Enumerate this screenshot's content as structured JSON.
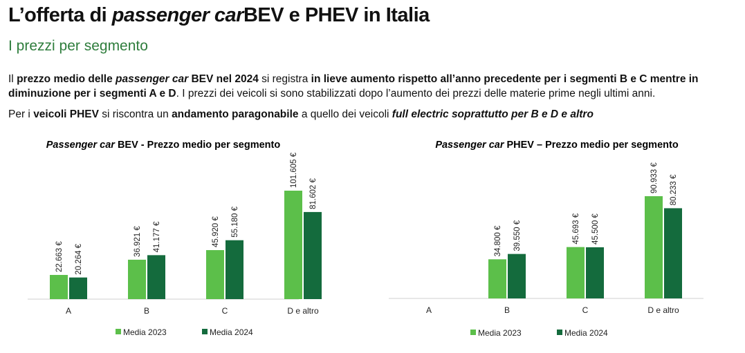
{
  "header": {
    "title_pre": "L’offerta di ",
    "title_italic": "passenger car",
    "title_post": "BEV e PHEV in Italia",
    "subtitle": "I prezzi per segmento"
  },
  "paragraph1": {
    "s1": "Il ",
    "s2": "prezzo medio delle ",
    "s3": "passenger car",
    "s4": " BEV nel 2024",
    "s5": " si registra ",
    "s6": "in lieve aumento rispetto all’anno precedente per i segmenti B e C mentre in diminuzione per i segmenti A e D",
    "s7": ". I prezzi dei veicoli si sono stabilizzati dopo l’aumento dei prezzi delle materie prime negli ultimi anni."
  },
  "paragraph2": {
    "s1": "Per i ",
    "s2": "veicoli PHEV",
    "s3": " si riscontra un ",
    "s4": "andamento paragonabile",
    "s5": " a quello dei veicoli ",
    "s6": "full electric soprattutto per B e D e altro"
  },
  "colors": {
    "media_2023": "#5cbf4a",
    "media_2024": "#146b3d"
  },
  "chart_data": [
    {
      "type": "bar",
      "title_italic": "Passenger car",
      "title_rest": " BEV - Prezzo medio per segmento",
      "categories": [
        "A",
        "B",
        "C",
        "D e altro"
      ],
      "series": [
        {
          "name": "Media 2023",
          "values": [
            22663,
            36921,
            45920,
            101605
          ],
          "labels": [
            "22.663 €",
            "36.921 €",
            "45.920 €",
            "101.605 €"
          ]
        },
        {
          "name": "Media 2024",
          "values": [
            20264,
            41177,
            55180,
            81602
          ],
          "labels": [
            "20.264 €",
            "41.177 €",
            "55.180 €",
            "81.602 €"
          ]
        }
      ],
      "ylim": [
        0,
        101605
      ]
    },
    {
      "type": "bar",
      "title_italic": "Passenger car",
      "title_rest": " PHEV – Prezzo medio per segmento",
      "categories": [
        "A",
        "B",
        "C",
        "D e altro"
      ],
      "series": [
        {
          "name": "Media 2023",
          "values": [
            null,
            34800,
            45693,
            90933
          ],
          "labels": [
            "",
            "34.800 €",
            "45.693 €",
            "90.933 €"
          ]
        },
        {
          "name": "Media 2024",
          "values": [
            null,
            39550,
            45500,
            80233
          ],
          "labels": [
            "",
            "39.550 €",
            "45.500 €",
            "80.233 €"
          ]
        }
      ],
      "ylim": [
        0,
        90933
      ]
    }
  ]
}
